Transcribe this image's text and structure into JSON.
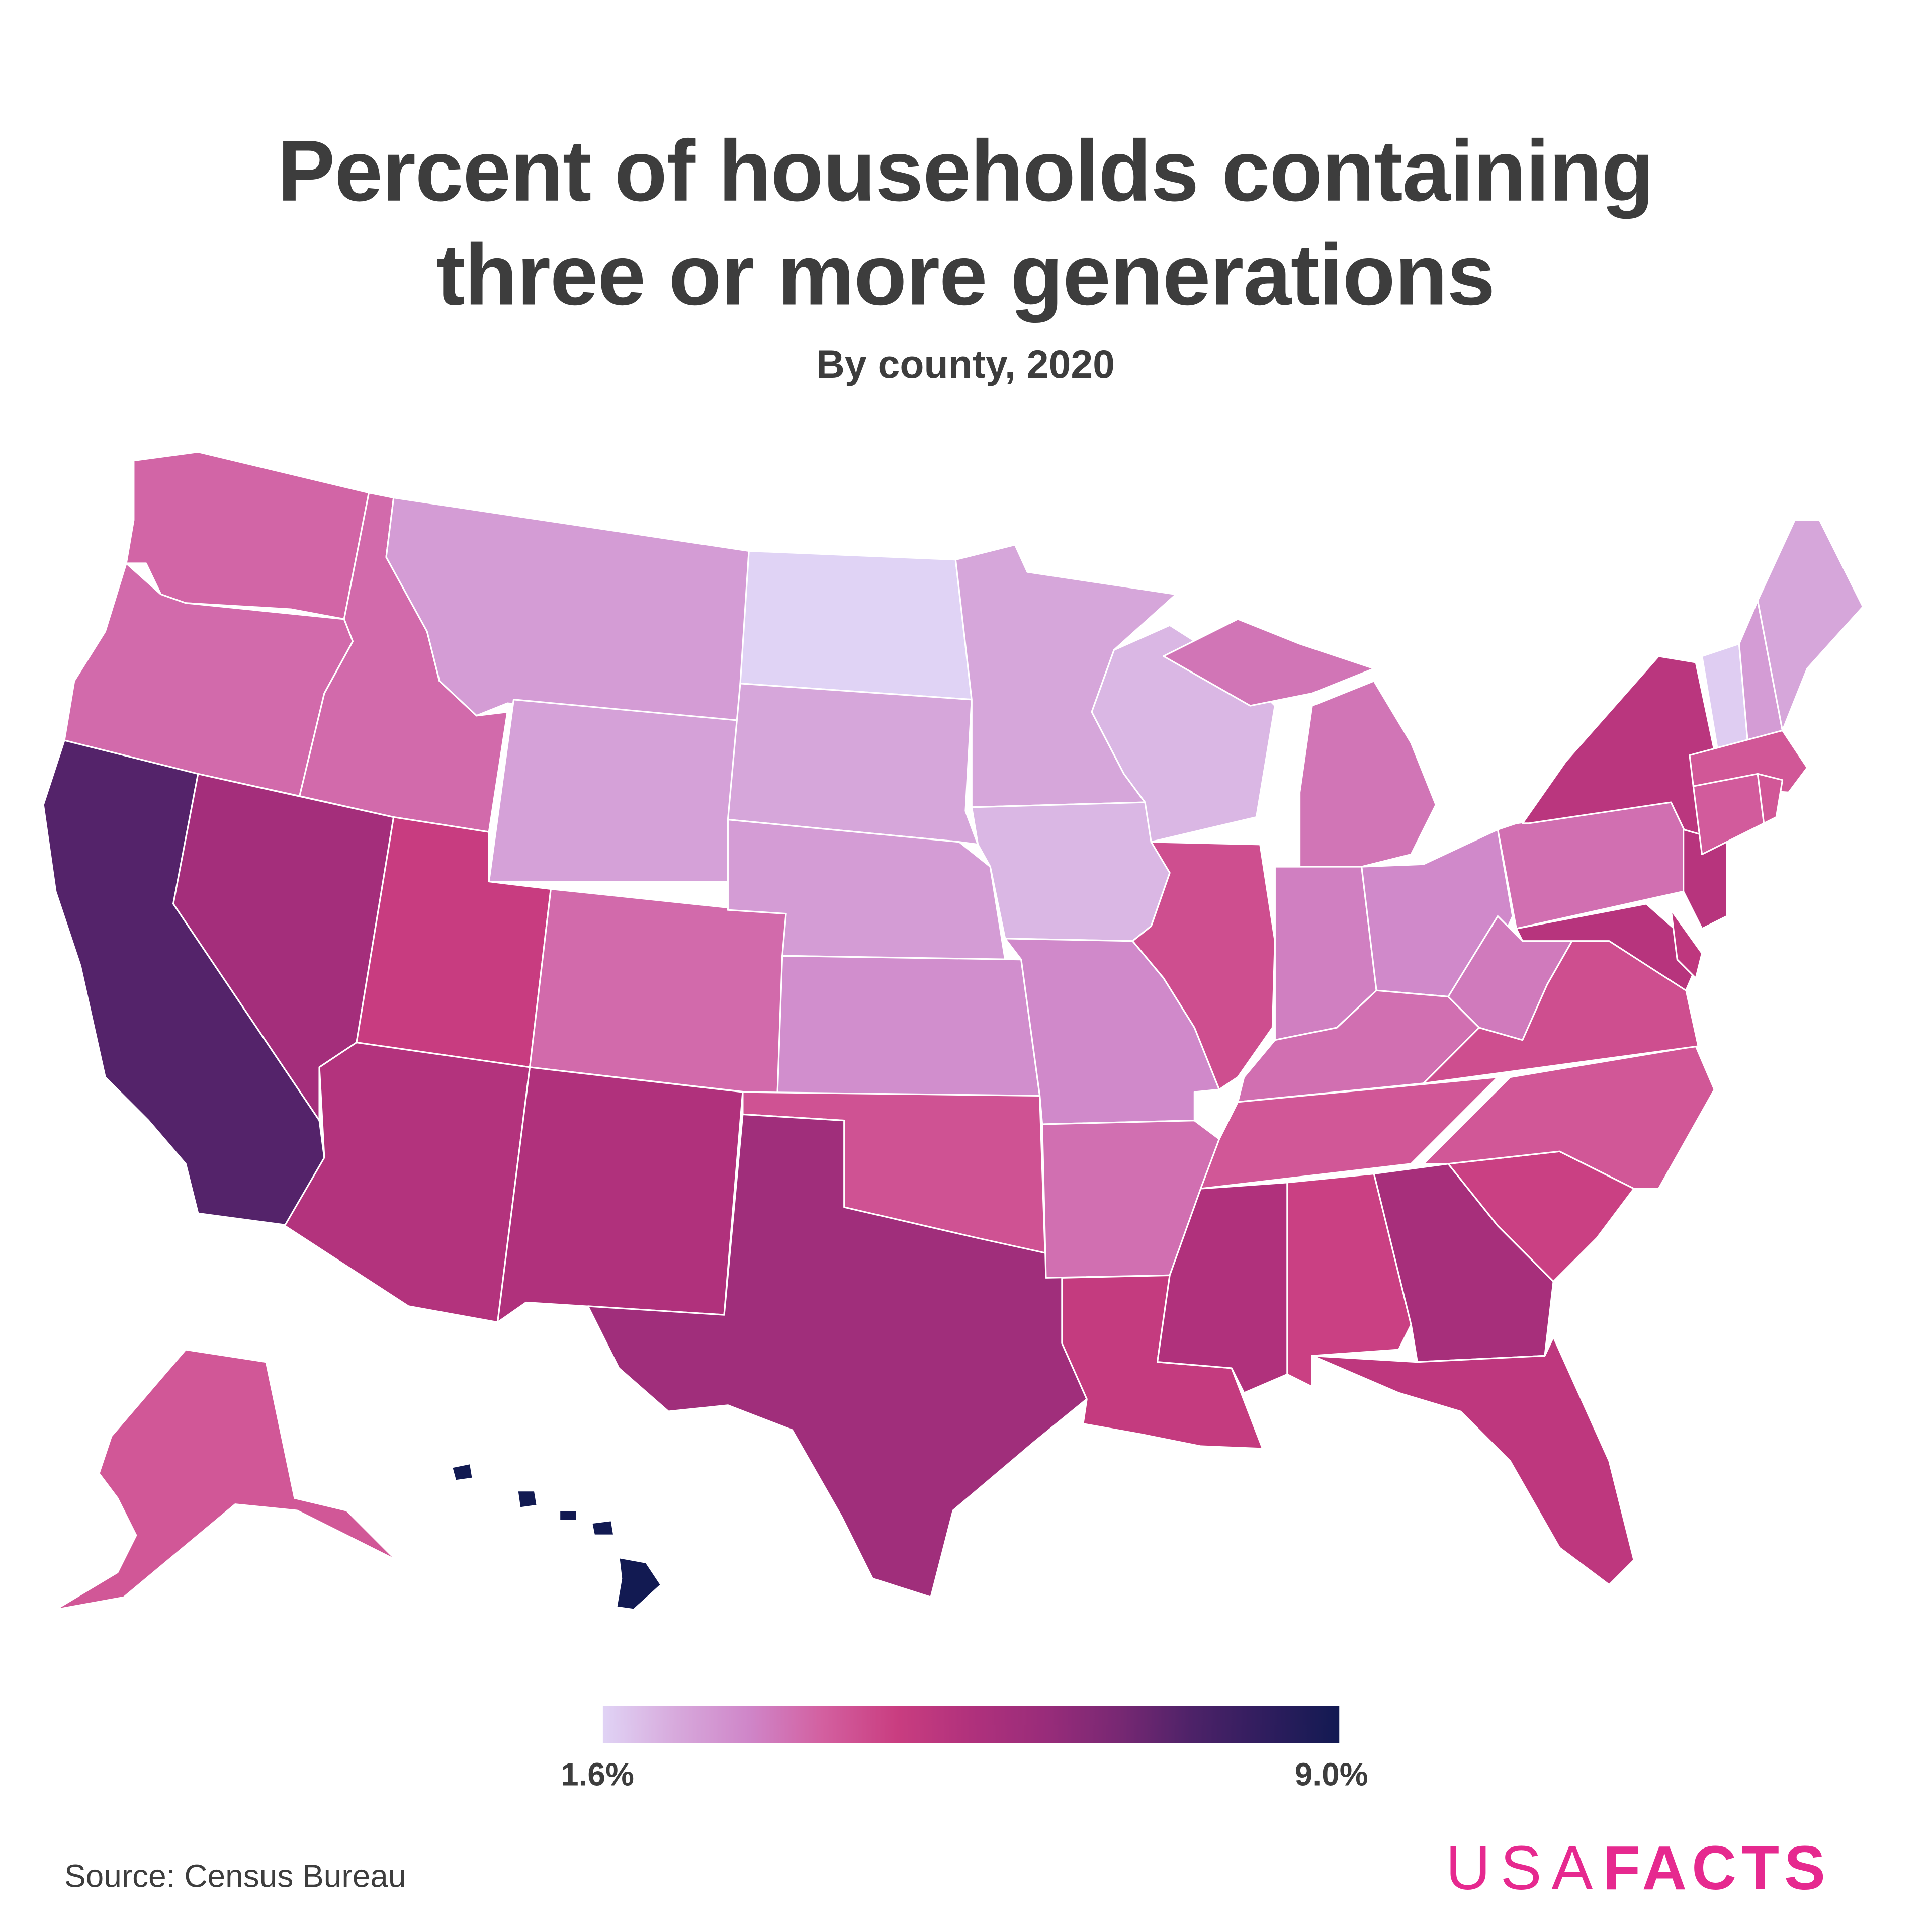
{
  "title_line1": "Percent of households containing",
  "title_line2": "three or more generations",
  "subtitle": "By county, 2020",
  "source": "Source: Census Bureau",
  "logo": {
    "part1": "USA",
    "part2": "FACTS",
    "color": "#e6298f"
  },
  "chart_data": {
    "type": "choropleth",
    "title": "Percent of households containing three or more generations",
    "subtitle": "By county, 2020",
    "legend": {
      "min_label": "1.6%",
      "max_label": "9.0%",
      "min": 1.6,
      "max": 9.0,
      "placement": "bottom-center",
      "colors": [
        "#e0d3f5",
        "#d7a9dc",
        "#cf85c8",
        "#d35f9f",
        "#c93d80",
        "#b0317c",
        "#992c7a",
        "#782873",
        "#4d2268",
        "#2f1d5e",
        "#121a52"
      ]
    },
    "values_note_estimated_from_color": true,
    "states": {
      "WA": 3.7,
      "OR": 3.6,
      "CA": 7.4,
      "NV": 5.7,
      "ID": 3.6,
      "MT": 2.6,
      "WY": 2.5,
      "UT": 4.6,
      "CO": 3.6,
      "AZ": 5.2,
      "NM": 5.3,
      "ND": 1.6,
      "SD": 2.4,
      "NE": 2.6,
      "KS": 2.9,
      "OK": 4.1,
      "TX": 5.8,
      "MN": 2.4,
      "IA": 2.1,
      "MO": 3.0,
      "AR": 3.5,
      "LA": 4.7,
      "WI": 2.1,
      "IL": 4.2,
      "MI": 3.4,
      "IN": 3.2,
      "OH": 3.0,
      "KY": 3.5,
      "TN": 4.0,
      "MS": 5.3,
      "AL": 4.5,
      "GA": 5.6,
      "FL": 4.9,
      "SC": 4.5,
      "NC": 4.0,
      "VA": 4.2,
      "WV": 3.3,
      "PA": 3.5,
      "NY": 5.0,
      "NJ": 5.1,
      "MD": 5.1,
      "DE": 4.9,
      "VT": 1.7,
      "NH": 2.6,
      "ME": 2.4,
      "MA": 4.0,
      "CT": 3.9,
      "RI": 4.0,
      "AK": 4.0,
      "HI": 9.0
    }
  }
}
